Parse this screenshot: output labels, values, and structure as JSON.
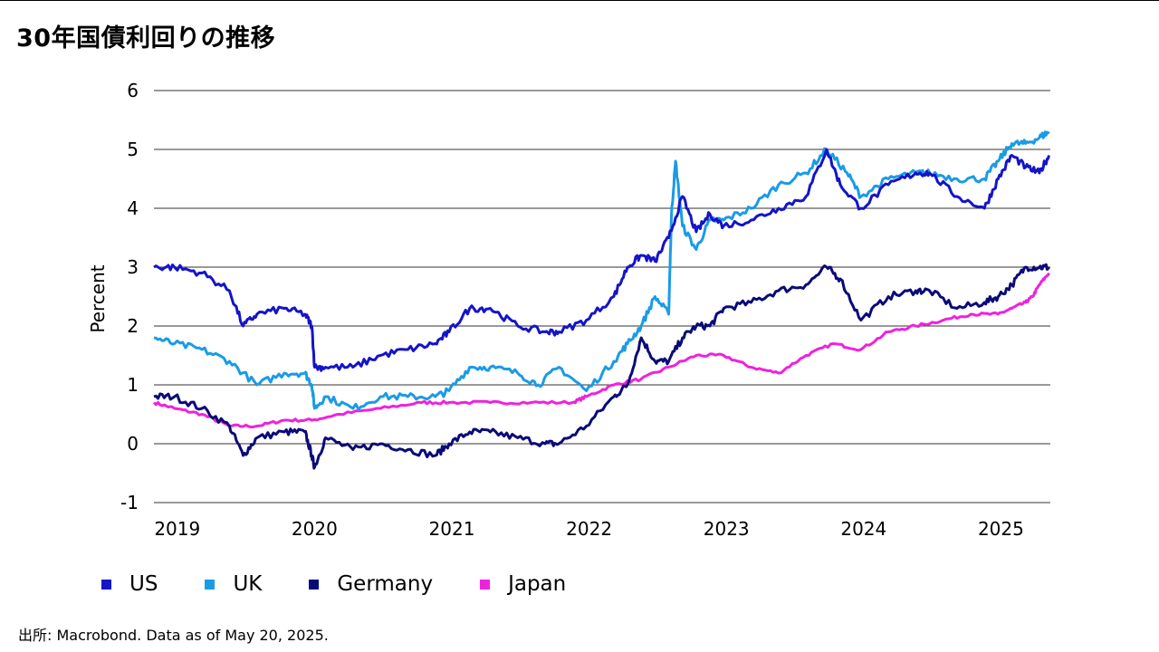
{
  "title": "30年国債利回りの推移",
  "source": "出所: Macrobond. Data as of May 20, 2025.",
  "colors": {
    "US": "#1414c8",
    "UK": "#1a9be6",
    "Germany": "#0a0a78",
    "Japan": "#ee22dd"
  },
  "chart_data": {
    "type": "line",
    "ylabel": "Percent",
    "ylim": [
      -1,
      6
    ],
    "yticks": [
      "6",
      "5",
      "4",
      "3",
      "2",
      "1",
      "0",
      "-1"
    ],
    "xlim": [
      2018.85,
      2025.38
    ],
    "xticks": [
      "2019",
      "2020",
      "2021",
      "2022",
      "2023",
      "2024",
      "2025"
    ],
    "grid": "horizontal",
    "legend_position": "bottom",
    "series": [
      {
        "name": "US",
        "x": [
          2018.85,
          2019.0,
          2019.2,
          2019.4,
          2019.5,
          2019.6,
          2019.8,
          2019.95,
          2020.0,
          2020.02,
          2020.1,
          2020.3,
          2020.5,
          2020.7,
          2020.9,
          2021.0,
          2021.15,
          2021.3,
          2021.5,
          2021.7,
          2021.8,
          2022.0,
          2022.2,
          2022.3,
          2022.4,
          2022.5,
          2022.6,
          2022.7,
          2022.8,
          2022.9,
          2023.0,
          2023.2,
          2023.4,
          2023.6,
          2023.75,
          2023.85,
          2024.0,
          2024.2,
          2024.4,
          2024.5,
          2024.7,
          2024.9,
          2025.0,
          2025.1,
          2025.2,
          2025.3,
          2025.37
        ],
        "y": [
          3.0,
          3.0,
          2.9,
          2.6,
          2.0,
          2.2,
          2.3,
          2.2,
          2.0,
          1.3,
          1.3,
          1.3,
          1.5,
          1.6,
          1.7,
          1.9,
          2.3,
          2.3,
          2.0,
          1.9,
          1.9,
          2.1,
          2.5,
          3.0,
          3.2,
          3.1,
          3.5,
          4.2,
          3.6,
          3.9,
          3.7,
          3.8,
          4.0,
          4.2,
          5.0,
          4.4,
          4.0,
          4.4,
          4.6,
          4.6,
          4.2,
          4.0,
          4.5,
          4.9,
          4.7,
          4.6,
          4.9
        ]
      },
      {
        "name": "UK",
        "x": [
          2018.85,
          2019.0,
          2019.2,
          2019.4,
          2019.6,
          2019.8,
          2019.95,
          2020.0,
          2020.02,
          2020.1,
          2020.3,
          2020.5,
          2020.7,
          2020.9,
          2021.0,
          2021.15,
          2021.3,
          2021.5,
          2021.65,
          2021.8,
          2022.0,
          2022.2,
          2022.3,
          2022.4,
          2022.5,
          2022.6,
          2022.62,
          2022.65,
          2022.7,
          2022.8,
          2022.9,
          2023.0,
          2023.2,
          2023.4,
          2023.6,
          2023.75,
          2023.9,
          2024.0,
          2024.2,
          2024.4,
          2024.5,
          2024.7,
          2024.9,
          2025.0,
          2025.1,
          2025.2,
          2025.3,
          2025.37
        ],
        "y": [
          1.8,
          1.7,
          1.6,
          1.4,
          1.0,
          1.2,
          1.2,
          1.0,
          0.6,
          0.8,
          0.6,
          0.8,
          0.8,
          0.8,
          0.9,
          1.3,
          1.3,
          1.2,
          1.0,
          1.3,
          0.9,
          1.4,
          1.7,
          2.0,
          2.5,
          2.2,
          3.9,
          4.8,
          3.7,
          3.3,
          3.8,
          3.8,
          4.0,
          4.4,
          4.6,
          5.0,
          4.6,
          4.2,
          4.5,
          4.6,
          4.6,
          4.5,
          4.5,
          4.8,
          5.1,
          5.1,
          5.2,
          5.3
        ]
      },
      {
        "name": "Germany",
        "x": [
          2018.85,
          2019.0,
          2019.2,
          2019.4,
          2019.5,
          2019.6,
          2019.8,
          2019.95,
          2020.0,
          2020.02,
          2020.1,
          2020.3,
          2020.5,
          2020.7,
          2020.9,
          2021.0,
          2021.15,
          2021.3,
          2021.5,
          2021.7,
          2021.8,
          2022.0,
          2022.2,
          2022.3,
          2022.4,
          2022.5,
          2022.6,
          2022.7,
          2022.8,
          2022.9,
          2023.0,
          2023.2,
          2023.4,
          2023.6,
          2023.75,
          2023.85,
          2024.0,
          2024.2,
          2024.4,
          2024.5,
          2024.7,
          2024.9,
          2025.0,
          2025.1,
          2025.2,
          2025.3,
          2025.37
        ],
        "y": [
          0.8,
          0.8,
          0.6,
          0.3,
          -0.2,
          0.1,
          0.2,
          0.2,
          -0.2,
          -0.4,
          0.1,
          -0.1,
          0.0,
          -0.1,
          -0.2,
          0.0,
          0.2,
          0.2,
          0.1,
          0.0,
          0.0,
          0.3,
          0.8,
          1.0,
          1.8,
          1.4,
          1.4,
          1.8,
          2.0,
          2.0,
          2.3,
          2.4,
          2.6,
          2.7,
          3.0,
          2.8,
          2.1,
          2.5,
          2.6,
          2.6,
          2.3,
          2.4,
          2.5,
          2.7,
          3.0,
          3.0,
          3.0
        ]
      },
      {
        "name": "Japan",
        "x": [
          2018.85,
          2019.0,
          2019.2,
          2019.4,
          2019.6,
          2019.8,
          2020.0,
          2020.2,
          2020.5,
          2020.8,
          2021.0,
          2021.3,
          2021.6,
          2021.9,
          2022.0,
          2022.2,
          2022.4,
          2022.6,
          2022.8,
          2023.0,
          2023.2,
          2023.4,
          2023.6,
          2023.8,
          2024.0,
          2024.2,
          2024.4,
          2024.6,
          2024.8,
          2025.0,
          2025.1,
          2025.2,
          2025.25,
          2025.3,
          2025.37
        ],
        "y": [
          0.7,
          0.6,
          0.5,
          0.3,
          0.3,
          0.4,
          0.4,
          0.5,
          0.6,
          0.7,
          0.7,
          0.7,
          0.7,
          0.7,
          0.8,
          1.0,
          1.1,
          1.3,
          1.5,
          1.5,
          1.3,
          1.2,
          1.5,
          1.7,
          1.6,
          1.9,
          2.0,
          2.1,
          2.2,
          2.2,
          2.3,
          2.4,
          2.5,
          2.7,
          2.9
        ]
      }
    ]
  }
}
